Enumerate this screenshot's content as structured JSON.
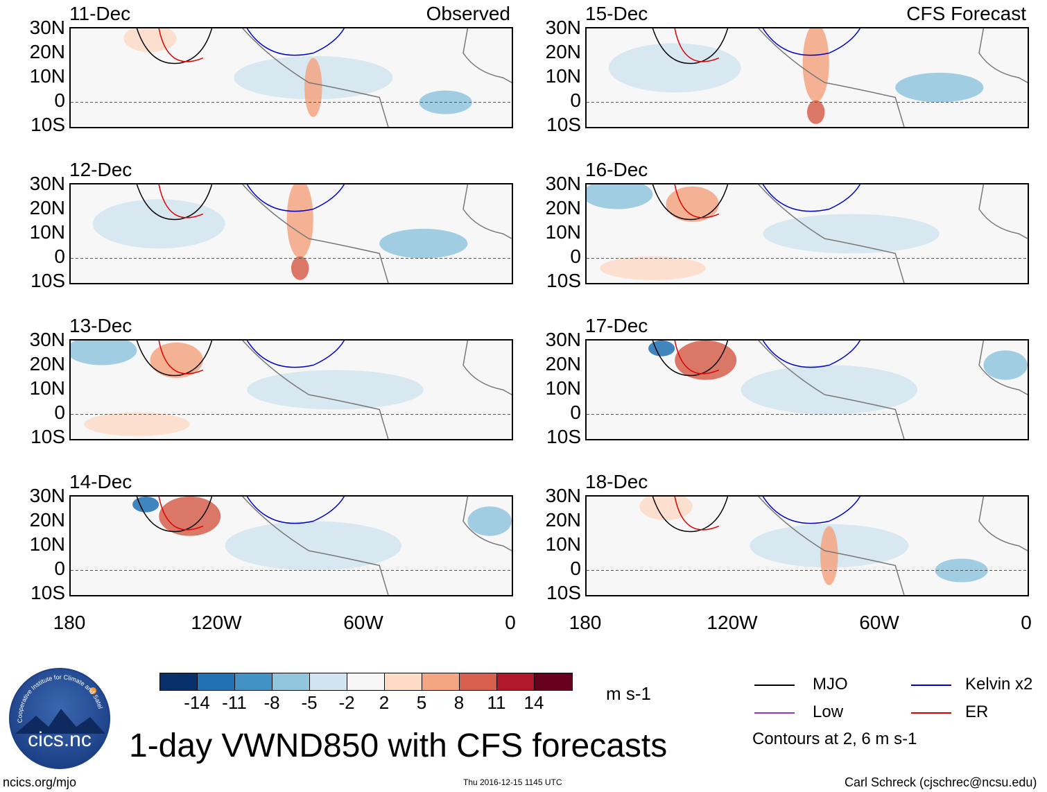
{
  "left_panels": [
    {
      "date": "11-Dec",
      "tag": "Observed"
    },
    {
      "date": "12-Dec",
      "tag": ""
    },
    {
      "date": "13-Dec",
      "tag": ""
    },
    {
      "date": "14-Dec",
      "tag": ""
    }
  ],
  "right_panels": [
    {
      "date": "15-Dec",
      "tag": "CFS Forecast"
    },
    {
      "date": "16-Dec",
      "tag": ""
    },
    {
      "date": "17-Dec",
      "tag": ""
    },
    {
      "date": "18-Dec",
      "tag": ""
    }
  ],
  "lat_labels": [
    "30N",
    "20N",
    "10N",
    "0",
    "10S"
  ],
  "lon_labels": [
    "180",
    "120W",
    "60W",
    "0"
  ],
  "colorbar": {
    "colors": [
      "#08306b",
      "#2171b5",
      "#4292c6",
      "#92c5de",
      "#d1e5f0",
      "#f7f7f7",
      "#fddbc7",
      "#f4a582",
      "#d6604d",
      "#b2182b",
      "#67001f"
    ],
    "labels": [
      "-14",
      "-11",
      "-8",
      "-5",
      "-2",
      "2",
      "5",
      "8",
      "11",
      "14"
    ],
    "units": "m s-1"
  },
  "legend": {
    "items": [
      {
        "label": "MJO",
        "color": "#000000"
      },
      {
        "label": "Kelvin x2",
        "color": "#0000cc"
      },
      {
        "label": "Low",
        "color": "#9933cc"
      },
      {
        "label": "ER",
        "color": "#dd0000"
      }
    ],
    "note": "Contours at 2, 6 m s-1"
  },
  "title": "1-day VWND850 with CFS forecasts",
  "logo_text": "cics.nc",
  "logo_ring_text": "Cooperative Institute for Climate and Satellites",
  "footer": {
    "left": "ncics.org/mjo",
    "center": "Thu 2016-12-15 1145 UTC",
    "right": "Carl Schreck (cjschrec@ncsu.edu)"
  }
}
